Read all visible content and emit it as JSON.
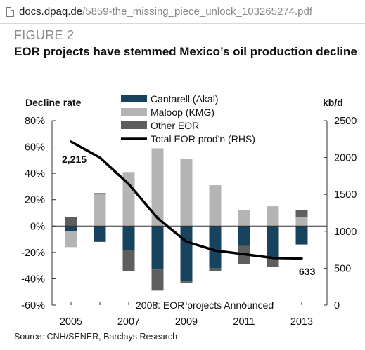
{
  "browser": {
    "url_domain": "docs.dpaq.de",
    "url_path": "/5859-the_missing_piece_unlock_103265274.pdf"
  },
  "figure": {
    "label": "FIGURE 2",
    "title": "EOR projects have stemmed Mexico’s oil production decline",
    "source": "Source: CNH/SENER, Barclays Research"
  },
  "colors": {
    "cantarell": "#17435f",
    "maloop": "#b4b4b4",
    "other": "#5e5e5e",
    "total": "#000000"
  },
  "chart_data": {
    "type": "bar",
    "y_left_label": "Decline rate",
    "y_right_label": "kb/d",
    "y_left_range": [
      -60,
      80
    ],
    "y_left_ticks": [
      -60,
      -40,
      -20,
      0,
      20,
      40,
      60,
      80
    ],
    "y_left_tick_labels": [
      "-60%",
      "-40%",
      "-20%",
      "0%",
      "20%",
      "40%",
      "60%",
      "80%"
    ],
    "y_right_range": [
      0,
      2500
    ],
    "y_right_ticks": [
      0,
      500,
      1000,
      1500,
      2000,
      2500
    ],
    "y_right_tick_labels": [
      "0",
      "500",
      "1000",
      "1500",
      "2000",
      "2500"
    ],
    "x": [
      2005,
      2006,
      2007,
      2008,
      2009,
      2010,
      2011,
      2012,
      2013
    ],
    "x_tick_labels": [
      "2005",
      "",
      "2007",
      "",
      "2009",
      "",
      "2011",
      "",
      "2013"
    ],
    "series": [
      {
        "name": "Cantarell (Akal)",
        "axis": "left",
        "kind": "bar",
        "values": [
          -4,
          -12,
          -18,
          -33,
          -42,
          -32,
          -15,
          -24,
          -14
        ]
      },
      {
        "name": "Maloop (KMG)",
        "axis": "left",
        "kind": "bar",
        "values": [
          -12,
          24,
          41,
          59,
          51,
          31,
          12,
          15,
          7
        ]
      },
      {
        "name": "Other EOR",
        "axis": "left",
        "kind": "bar",
        "values": [
          7,
          1,
          -16,
          -16,
          -1,
          -2,
          -14,
          -7,
          5
        ]
      },
      {
        "name": "Total EOR prod'n  (RHS)",
        "axis": "right",
        "kind": "line",
        "values": [
          2215,
          2000,
          1640,
          1180,
          860,
          740,
          690,
          640,
          633
        ]
      }
    ],
    "annotations": {
      "start_value": "2,215",
      "end_value": "633",
      "event": "2008: EOR projects Announced"
    },
    "legend_position": "top-center",
    "grid": false
  }
}
